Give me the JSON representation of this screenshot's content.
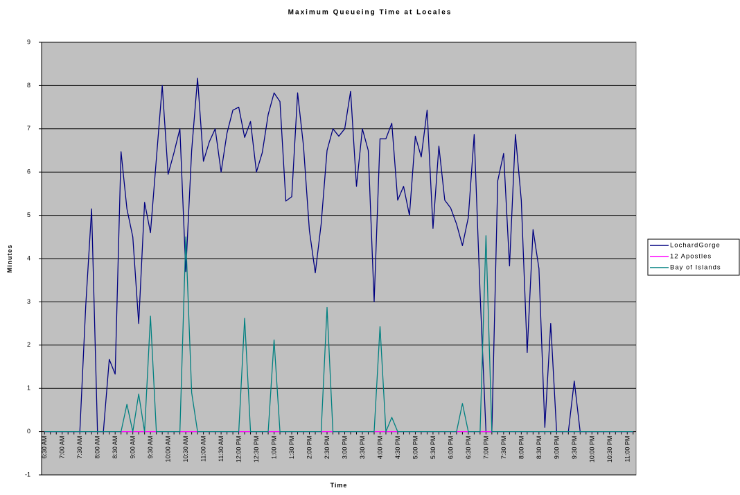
{
  "chart_data": {
    "type": "line",
    "title": "Maximum Queueing Time at Locales",
    "x_label": "Time",
    "y_label": "Minutes",
    "categories": [
      "6:30 AM",
      null,
      null,
      "7:00 AM",
      null,
      null,
      "7:30 AM",
      null,
      null,
      "8:00 AM",
      null,
      null,
      "8:30 AM",
      null,
      null,
      "9:00 AM",
      null,
      null,
      "9:30 AM",
      null,
      null,
      "10:00 AM",
      null,
      null,
      "10:30 AM",
      null,
      null,
      "11:00 AM",
      null,
      null,
      "11:30 AM",
      null,
      null,
      "12:00 PM",
      null,
      null,
      "12:30 PM",
      null,
      null,
      "1:00 PM",
      null,
      null,
      "1:30 PM",
      null,
      null,
      "2:00 PM",
      null,
      null,
      "2:30 PM",
      null,
      null,
      "3:00 PM",
      null,
      null,
      "3:30 PM",
      null,
      null,
      "4:00 PM",
      null,
      null,
      "4:30 PM",
      null,
      null,
      "5:00 PM",
      null,
      null,
      "5:30 PM",
      null,
      null,
      "6:00 PM",
      null,
      null,
      "6:30 PM",
      null,
      null,
      "7:00 PM",
      null,
      null,
      "7:30 PM",
      null,
      null,
      "8:00 PM",
      null,
      null,
      "8:30 PM",
      null,
      null,
      "9:00 PM",
      null,
      null,
      "9:30 PM",
      null,
      null,
      "10:00 PM",
      null,
      null,
      "10:30 PM",
      null,
      null,
      "11:00 PM",
      null
    ],
    "series": [
      {
        "name": "LochardGorge",
        "color": "#000080",
        "values": [
          0,
          0,
          0,
          0,
          0,
          0,
          0,
          2.9,
          5.15,
          0,
          0,
          1.67,
          1.33,
          6.47,
          5.15,
          4.5,
          2.5,
          5.3,
          4.6,
          6.3,
          8.0,
          5.95,
          6.45,
          7.0,
          3.7,
          6.5,
          8.17,
          6.25,
          6.7,
          7.0,
          6.0,
          6.9,
          7.43,
          7.5,
          6.8,
          7.17,
          6.0,
          6.45,
          7.33,
          7.83,
          7.63,
          5.33,
          5.43,
          7.83,
          6.6,
          4.65,
          3.67,
          4.8,
          6.5,
          7.0,
          6.83,
          7.0,
          7.87,
          5.67,
          7.0,
          6.5,
          3.0,
          6.77,
          6.77,
          7.13,
          5.35,
          5.67,
          5.0,
          6.83,
          6.35,
          7.43,
          4.7,
          6.6,
          5.35,
          5.17,
          4.8,
          4.3,
          4.95,
          6.87,
          3.2,
          0,
          0,
          5.8,
          6.43,
          3.83,
          6.87,
          5.35,
          1.83,
          4.67,
          3.77,
          0.1,
          2.5,
          0,
          0,
          0,
          1.17,
          0,
          0,
          0,
          0,
          0,
          0,
          0,
          0,
          0,
          0
        ]
      },
      {
        "name": "12 Apostles",
        "color": "#ff00ff",
        "values": [
          0,
          0,
          0,
          0,
          0,
          0,
          0,
          0,
          0,
          0,
          0,
          0,
          0,
          0,
          0,
          0,
          0,
          0,
          0,
          0,
          0,
          0,
          0,
          0,
          0,
          0,
          0,
          0,
          0,
          0,
          0,
          0,
          0,
          0,
          0,
          0,
          0,
          0,
          0,
          0,
          0,
          0,
          0,
          0,
          0,
          0,
          0,
          0,
          0,
          0,
          0,
          0,
          0,
          0,
          0,
          0,
          0,
          0,
          0,
          0,
          0,
          0,
          0,
          0,
          0,
          0,
          0,
          0,
          0,
          0,
          0,
          0,
          0,
          0,
          0,
          0,
          0,
          0,
          0,
          0,
          0,
          0,
          0,
          0,
          0,
          0,
          0,
          0,
          0,
          0,
          0,
          0,
          0,
          0,
          0,
          0,
          0,
          0,
          0,
          0,
          0
        ]
      },
      {
        "name": "Bay of Islands",
        "color": "#008080",
        "values": [
          0,
          0,
          0,
          0,
          0,
          0,
          0,
          0,
          0,
          0,
          0,
          0,
          0,
          0,
          0.63,
          0,
          0.87,
          0,
          2.67,
          0,
          0,
          0,
          0,
          0,
          4.5,
          0.9,
          0,
          0,
          0,
          0,
          0,
          0,
          0,
          0,
          2.62,
          0,
          0,
          0,
          0,
          2.12,
          0,
          0,
          0,
          0,
          0,
          0,
          0,
          0,
          2.87,
          0,
          0,
          0,
          0,
          0,
          0,
          0,
          0,
          2.43,
          0,
          0.33,
          0,
          0,
          0,
          0,
          0,
          0,
          0,
          0,
          0,
          0,
          0,
          0.65,
          0,
          0,
          0,
          4.53,
          0,
          0,
          0,
          0,
          0,
          0,
          0,
          0,
          0,
          0,
          0,
          0,
          0,
          0,
          0,
          0,
          0,
          0,
          0,
          0,
          0,
          0,
          0,
          0,
          0
        ]
      }
    ],
    "ylim": [
      -1,
      9
    ],
    "yticks": [
      -1,
      0,
      1,
      2,
      3,
      4,
      5,
      6,
      7,
      8,
      9
    ],
    "grid": true,
    "legend": "right",
    "plot_background": "#c0c0c0"
  }
}
